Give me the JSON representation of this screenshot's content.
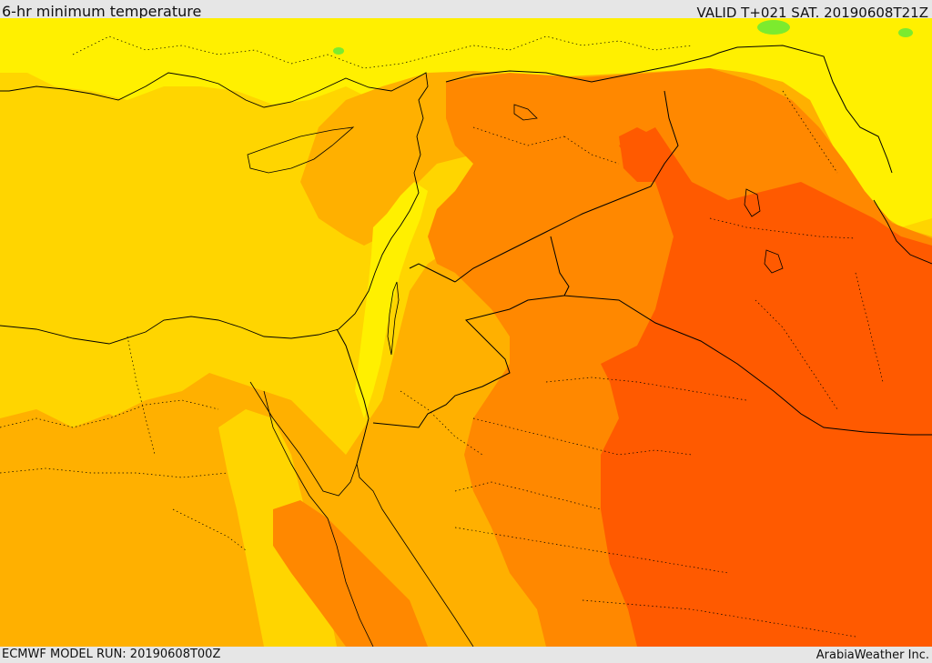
{
  "map": {
    "title": "6-hr minimum temperature",
    "valid": "VALID T+021 SAT. 20190608T21Z",
    "model_run": "ECMWF MODEL RUN: 20190608T00Z",
    "credit": "ArabiaWeather Inc.",
    "colors": {
      "base_yellow": "#FFD500",
      "light_yellow": "#FFF000",
      "gold": "#FFB000",
      "orange": "#FF8800",
      "red_orange": "#FF5A00",
      "green": "#7CEB2E",
      "border": "#000000"
    }
  }
}
